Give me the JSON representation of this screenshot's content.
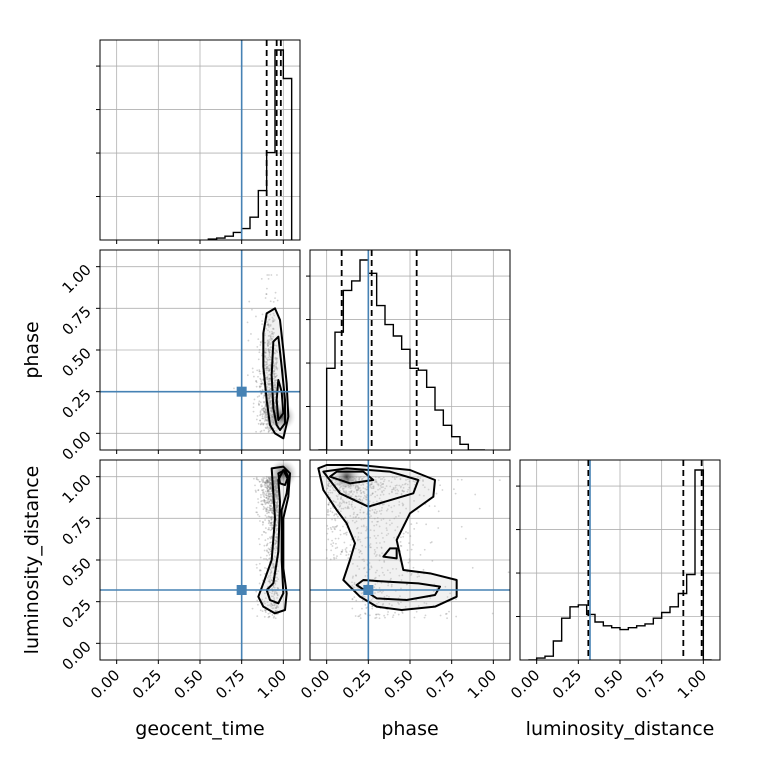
{
  "chart_data": {
    "type": "corner",
    "parameters": [
      "geocent_time",
      "phase",
      "luminosity_distance"
    ],
    "axis_range": [
      -0.1,
      1.1
    ],
    "ticks": [
      0.0,
      0.25,
      0.5,
      0.75,
      1.0
    ],
    "tick_labels": [
      "0.00",
      "0.25",
      "0.50",
      "0.75",
      "1.00"
    ],
    "grid": true,
    "colors": {
      "truth": "#4682b4",
      "hist": "#000000",
      "points": "#808080"
    },
    "truths": {
      "geocent_time": 0.75,
      "phase": 0.25,
      "luminosity_distance": 0.32
    },
    "quantiles": {
      "geocent_time": [
        0.9,
        0.96,
        0.985
      ],
      "phase": [
        0.09,
        0.27,
        0.54
      ],
      "luminosity_distance": [
        0.31,
        0.88,
        0.99
      ]
    },
    "histograms": {
      "geocent_time": {
        "edges": [
          0.55,
          0.6,
          0.65,
          0.7,
          0.75,
          0.8,
          0.85,
          0.9,
          0.95,
          1.0,
          1.05
        ],
        "counts": [
          0.005,
          0.01,
          0.02,
          0.04,
          0.06,
          0.12,
          0.26,
          0.46,
          1.0,
          0.85
        ]
      },
      "phase": {
        "edges": [
          -0.05,
          0.0,
          0.05,
          0.1,
          0.15,
          0.2,
          0.25,
          0.3,
          0.35,
          0.4,
          0.45,
          0.5,
          0.55,
          0.6,
          0.65,
          0.7,
          0.75,
          0.8,
          0.85,
          0.9,
          0.95
        ],
        "counts": [
          0.0,
          0.43,
          0.62,
          0.84,
          0.89,
          1.0,
          0.93,
          0.76,
          0.66,
          0.6,
          0.53,
          0.43,
          0.42,
          0.33,
          0.21,
          0.13,
          0.07,
          0.03,
          0.0,
          0.0
        ]
      },
      "luminosity_distance": {
        "edges": [
          -0.05,
          0.0,
          0.05,
          0.1,
          0.15,
          0.2,
          0.25,
          0.3,
          0.35,
          0.4,
          0.45,
          0.5,
          0.55,
          0.6,
          0.65,
          0.7,
          0.75,
          0.8,
          0.85,
          0.9,
          0.95,
          1.0,
          1.05
        ],
        "counts": [
          0.0,
          0.01,
          0.02,
          0.1,
          0.22,
          0.28,
          0.29,
          0.24,
          0.2,
          0.18,
          0.17,
          0.16,
          0.17,
          0.18,
          0.19,
          0.22,
          0.25,
          0.28,
          0.35,
          0.45,
          1.0,
          0.0
        ]
      }
    },
    "contours": {
      "phase_vs_geocent_time": {
        "levels": [
          [
            [
              0.95,
              0.0
            ],
            [
              0.92,
              0.05
            ],
            [
              0.9,
              0.2
            ],
            [
              0.88,
              0.4
            ],
            [
              0.88,
              0.6
            ],
            [
              0.9,
              0.72
            ],
            [
              0.95,
              0.75
            ],
            [
              0.98,
              0.68
            ],
            [
              1.0,
              0.5
            ],
            [
              1.02,
              0.3
            ],
            [
              1.03,
              0.1
            ],
            [
              1.0,
              -0.03
            ]
          ],
          [
            [
              0.96,
              0.05
            ],
            [
              0.94,
              0.15
            ],
            [
              0.93,
              0.35
            ],
            [
              0.94,
              0.55
            ],
            [
              0.97,
              0.58
            ],
            [
              0.99,
              0.4
            ],
            [
              1.01,
              0.2
            ],
            [
              1.01,
              0.06
            ],
            [
              0.98,
              0.02
            ]
          ],
          [
            [
              0.97,
              0.08
            ],
            [
              0.96,
              0.2
            ],
            [
              0.97,
              0.32
            ],
            [
              0.99,
              0.25
            ],
            [
              1.0,
              0.12
            ]
          ]
        ],
        "density_center": [
          0.99,
          0.1
        ]
      },
      "luminosity_distance_vs_geocent_time": {
        "levels": [
          [
            [
              0.88,
              0.22
            ],
            [
              0.85,
              0.28
            ],
            [
              0.88,
              0.36
            ],
            [
              0.93,
              0.5
            ],
            [
              0.95,
              0.75
            ],
            [
              0.94,
              0.9
            ],
            [
              0.93,
              1.05
            ],
            [
              1.0,
              1.06
            ],
            [
              1.04,
              1.02
            ],
            [
              1.03,
              0.88
            ],
            [
              1.0,
              0.75
            ],
            [
              1.0,
              0.45
            ],
            [
              1.02,
              0.3
            ],
            [
              1.01,
              0.2
            ],
            [
              0.95,
              0.18
            ]
          ],
          [
            [
              0.92,
              0.26
            ],
            [
              0.9,
              0.32
            ],
            [
              0.94,
              0.36
            ],
            [
              0.97,
              0.55
            ],
            [
              0.98,
              0.85
            ],
            [
              0.97,
              0.98
            ],
            [
              1.0,
              1.04
            ],
            [
              1.03,
              0.98
            ],
            [
              1.02,
              0.9
            ],
            [
              0.99,
              0.8
            ],
            [
              0.99,
              0.5
            ],
            [
              1.0,
              0.3
            ],
            [
              0.97,
              0.24
            ]
          ],
          [
            [
              0.98,
              0.96
            ],
            [
              0.97,
              1.02
            ],
            [
              1.01,
              1.04
            ],
            [
              1.03,
              1.0
            ],
            [
              1.01,
              0.95
            ]
          ]
        ],
        "density_center": [
          1.0,
          1.02
        ]
      },
      "luminosity_distance_vs_phase": {
        "levels": [
          [
            [
              -0.05,
              1.05
            ],
            [
              -0.02,
              0.92
            ],
            [
              0.06,
              0.8
            ],
            [
              0.12,
              0.72
            ],
            [
              0.17,
              0.6
            ],
            [
              0.14,
              0.5
            ],
            [
              0.1,
              0.38
            ],
            [
              0.2,
              0.28
            ],
            [
              0.3,
              0.22
            ],
            [
              0.45,
              0.2
            ],
            [
              0.65,
              0.22
            ],
            [
              0.78,
              0.28
            ],
            [
              0.78,
              0.38
            ],
            [
              0.62,
              0.42
            ],
            [
              0.46,
              0.44
            ],
            [
              0.42,
              0.62
            ],
            [
              0.5,
              0.78
            ],
            [
              0.64,
              0.88
            ],
            [
              0.65,
              0.98
            ],
            [
              0.5,
              1.04
            ],
            [
              0.2,
              1.07
            ],
            [
              0.0,
              1.07
            ]
          ],
          [
            [
              -0.02,
              1.03
            ],
            [
              0.08,
              0.9
            ],
            [
              0.25,
              0.82
            ],
            [
              0.35,
              0.85
            ],
            [
              0.52,
              0.9
            ],
            [
              0.55,
              0.98
            ],
            [
              0.38,
              1.03
            ],
            [
              0.12,
              1.05
            ]
          ],
          [
            [
              0.18,
              0.35
            ],
            [
              0.3,
              0.27
            ],
            [
              0.48,
              0.26
            ],
            [
              0.65,
              0.29
            ],
            [
              0.68,
              0.34
            ],
            [
              0.55,
              0.36
            ],
            [
              0.36,
              0.37
            ],
            [
              0.22,
              0.38
            ]
          ],
          [
            [
              0.34,
              0.52
            ],
            [
              0.38,
              0.57
            ],
            [
              0.42,
              0.57
            ],
            [
              0.42,
              0.51
            ]
          ],
          [
            [
              0.02,
              1.0
            ],
            [
              0.14,
              0.96
            ],
            [
              0.28,
              0.98
            ],
            [
              0.22,
              1.03
            ],
            [
              0.06,
              1.03
            ]
          ]
        ],
        "density_center": [
          0.12,
          1.0
        ]
      }
    }
  }
}
